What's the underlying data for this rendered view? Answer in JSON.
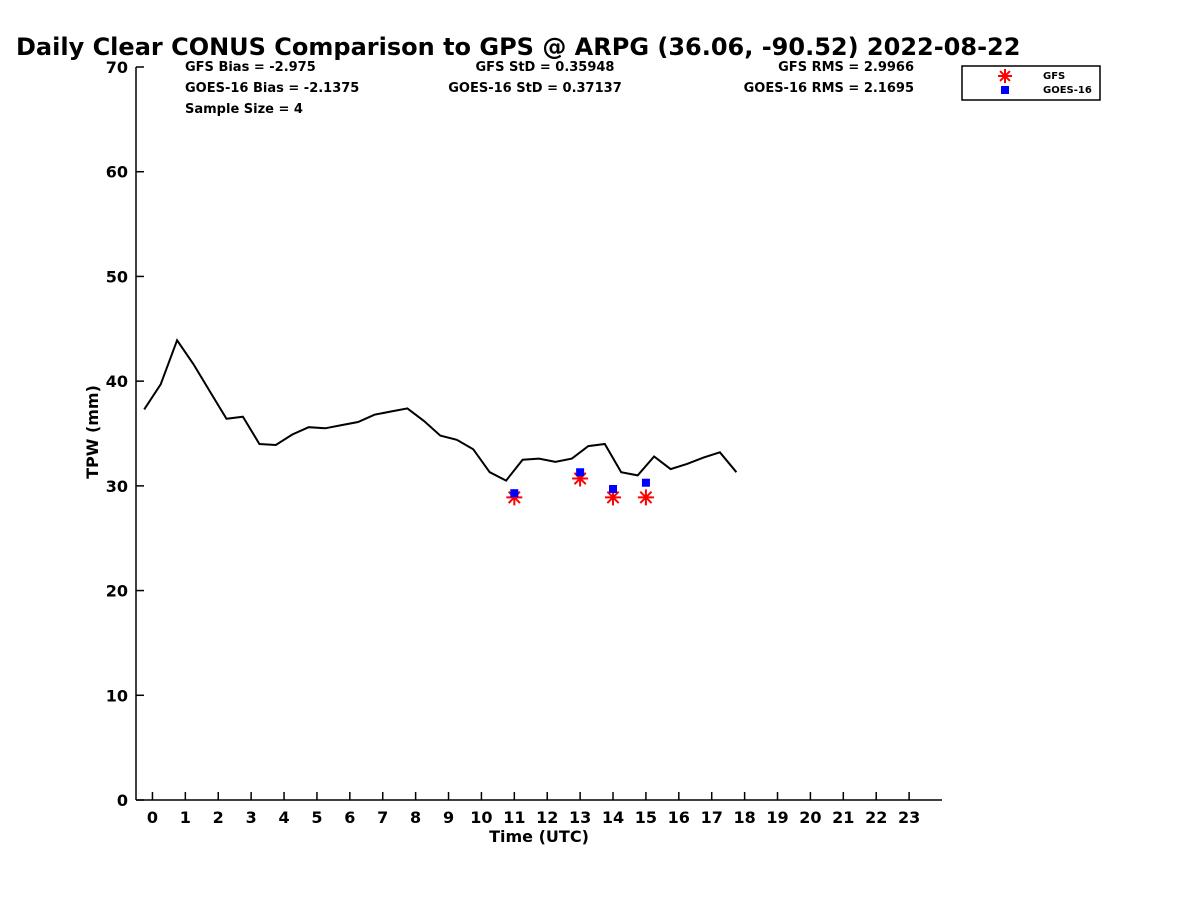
{
  "chart_data": {
    "type": "line",
    "title": "Daily Clear CONUS Comparison to GPS @ ARPG (36.06, -90.52) 2022-08-22",
    "xlabel": "Time (UTC)",
    "ylabel": "TPW (mm)",
    "xlim": [
      -0.5,
      24
    ],
    "ylim": [
      0,
      70
    ],
    "x_ticks": [
      "0",
      "1",
      "2",
      "3",
      "4",
      "5",
      "6",
      "7",
      "8",
      "9",
      "10",
      "11",
      "12",
      "13",
      "14",
      "15",
      "16",
      "17",
      "18",
      "19",
      "20",
      "21",
      "22",
      "23"
    ],
    "y_ticks": [
      "0",
      "10",
      "20",
      "30",
      "40",
      "50",
      "60",
      "70"
    ],
    "grid": false,
    "legend_position": "top-right",
    "stats": [
      {
        "gfs": "GFS Bias = -2.975",
        "goes": "GOES-16 Bias = -2.1375"
      },
      {
        "gfs": "GFS StD = 0.35948",
        "goes": "GOES-16 StD = 0.37137"
      },
      {
        "gfs": "GFS RMS = 2.9966",
        "goes": "GOES-16 RMS = 2.1695"
      }
    ],
    "sample_size": "Sample Size = 4",
    "series": [
      {
        "kind": "line",
        "color": "#000000",
        "x": [
          -0.25,
          0.25,
          0.75,
          1.25,
          1.75,
          2.25,
          2.75,
          3.25,
          3.75,
          4.25,
          4.75,
          5.25,
          5.75,
          6.25,
          6.75,
          7.25,
          7.75,
          8.25,
          8.75,
          9.25,
          9.75,
          10.25,
          10.75,
          11.25,
          11.75,
          12.25,
          12.75,
          13.25,
          13.75,
          14.25,
          14.75,
          15.25,
          15.75,
          16.25,
          16.75,
          17.25,
          17.75
        ],
        "y": [
          37.3,
          39.7,
          43.9,
          41.6,
          39.0,
          36.4,
          36.6,
          34.0,
          33.9,
          34.9,
          35.6,
          35.5,
          35.8,
          36.1,
          36.8,
          37.1,
          37.4,
          36.2,
          34.8,
          34.4,
          33.5,
          31.3,
          30.5,
          32.5,
          32.6,
          32.3,
          32.6,
          33.8,
          34.0,
          31.3,
          31.0,
          32.8,
          31.6,
          32.1,
          32.7,
          33.2,
          31.3
        ]
      },
      {
        "kind": "scatter",
        "name": "GFS",
        "marker": "asterisk",
        "color": "#ff0000",
        "x": [
          11,
          13,
          14,
          15
        ],
        "y": [
          28.9,
          30.7,
          28.9,
          28.9
        ]
      },
      {
        "kind": "scatter",
        "name": "GOES-16",
        "marker": "square",
        "color": "#0000ff",
        "x": [
          11,
          13,
          14,
          15
        ],
        "y": [
          29.3,
          31.3,
          29.7,
          30.3
        ]
      }
    ]
  }
}
